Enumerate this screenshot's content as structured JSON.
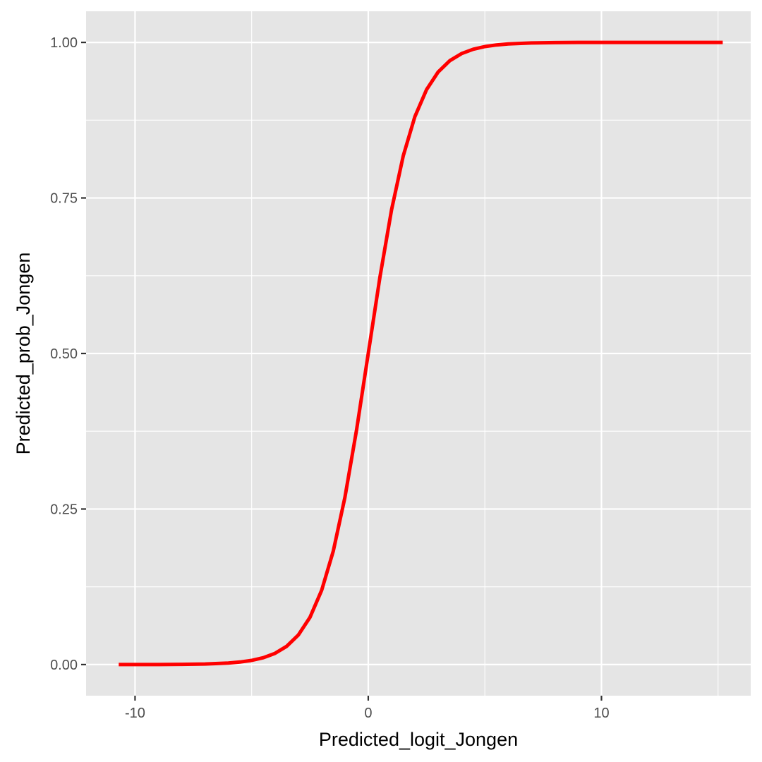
{
  "colors": {
    "panel_background": "#E5E5E5",
    "grid": "#FFFFFF",
    "line": "#FF0000",
    "tick_text": "#4D4D4D",
    "axis_title": "#000000"
  },
  "chart_data": {
    "type": "line",
    "title": "",
    "xlabel": "Predicted_logit_Jongen",
    "ylabel": "Predicted_prob_Jongen",
    "xlim": [
      -12.1,
      16.4
    ],
    "ylim": [
      -0.05,
      1.05
    ],
    "x_ticks": [
      -10,
      0,
      10
    ],
    "x_tick_labels": [
      "-10",
      "0",
      "10"
    ],
    "y_ticks": [
      0,
      0.25,
      0.5,
      0.75,
      1
    ],
    "y_tick_labels": [
      "0.00",
      "0.25",
      "0.50",
      "0.75",
      "1.00"
    ],
    "grid": true,
    "legend": "none",
    "series": [
      {
        "color": "#FF0000",
        "x": [
          -10.7,
          -10,
          -9,
          -8,
          -7,
          -6,
          -5.5,
          -5,
          -4.5,
          -4,
          -3.5,
          -3,
          -2.5,
          -2,
          -1.5,
          -1,
          -0.5,
          0,
          0.5,
          1,
          1.5,
          2,
          2.5,
          3,
          3.5,
          4,
          4.5,
          5,
          5.5,
          6,
          7,
          8,
          9,
          10,
          12,
          14,
          15.2
        ],
        "y": [
          0.0,
          0.0,
          0.0001,
          0.0003,
          0.0009,
          0.0025,
          0.0041,
          0.0067,
          0.011,
          0.018,
          0.0293,
          0.0474,
          0.0759,
          0.1192,
          0.1824,
          0.2689,
          0.3775,
          0.5,
          0.6225,
          0.7311,
          0.8176,
          0.8808,
          0.9241,
          0.9526,
          0.9707,
          0.982,
          0.989,
          0.9933,
          0.9959,
          0.9975,
          0.9991,
          0.9997,
          0.9999,
          1.0,
          1.0,
          1.0,
          1.0
        ]
      }
    ]
  }
}
